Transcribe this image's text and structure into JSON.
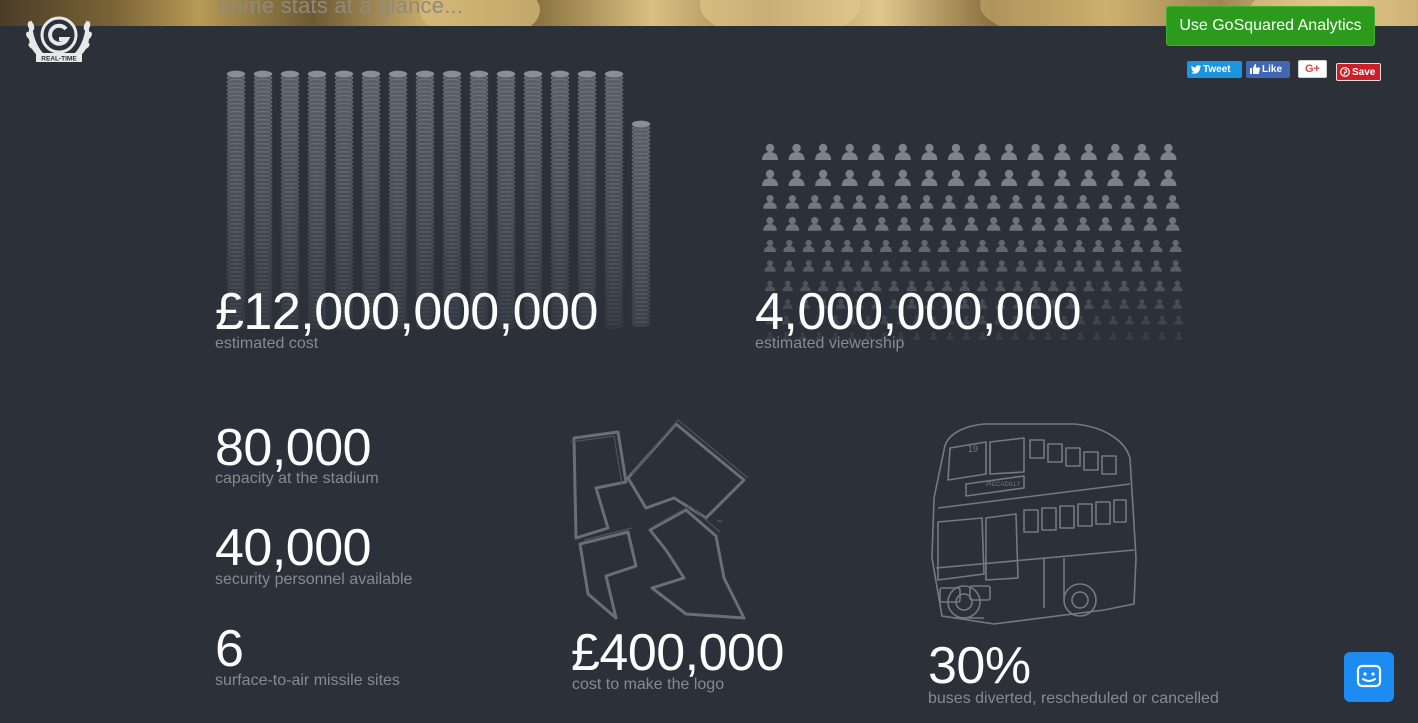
{
  "banner": {
    "title": "Some stats at a glance..."
  },
  "logo": {
    "label": "REAL-TIME"
  },
  "cta": {
    "label": "Use GoSquared Analytics"
  },
  "social": {
    "tweet": "Tweet",
    "like": "Like",
    "gplus": "G+",
    "save": "Save"
  },
  "stats": {
    "cost": {
      "value": "£12,000,000,000",
      "label": "estimated cost"
    },
    "viewership": {
      "value": "4,000,000,000",
      "label": "estimated viewership"
    },
    "capacity": {
      "value": "80,000",
      "label": "capacity at the stadium"
    },
    "security": {
      "value": "40,000",
      "label": "security personnel available"
    },
    "missiles": {
      "value": "6",
      "label": "surface-to-air missile sites"
    },
    "logo_cost": {
      "value": "£400,000",
      "label": "cost to make the logo"
    },
    "buses": {
      "value": "30%",
      "label": "buses diverted, rescheduled or cancelled"
    }
  },
  "colors": {
    "background": "#2c3038",
    "cta": "#2c9a1c",
    "chat": "#1c8cf2",
    "label": "#858a93"
  },
  "icons": [
    "laurel-logo-icon",
    "coin-stack-icon",
    "person-icon",
    "olympic-2012-logo-icon",
    "double-decker-bus-icon",
    "chat-icon",
    "twitter-icon",
    "facebook-like-icon",
    "pinterest-icon"
  ]
}
